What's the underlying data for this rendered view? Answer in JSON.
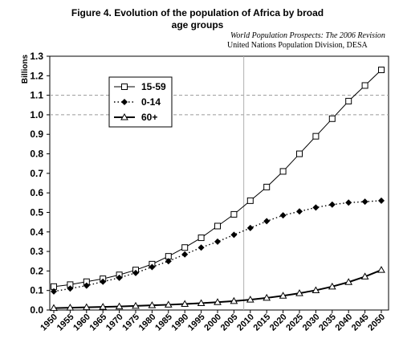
{
  "figure": {
    "title_line1": "Figure 4.  Evolution of the population of Africa by broad",
    "title_line2": "age groups",
    "source_line1": "World Population Prospects: The 2006 Revision",
    "source_line2": "United Nations Population Division, DESA"
  },
  "chart_data": {
    "type": "line",
    "ylabel": "Billions",
    "xlabel": "",
    "ylim": [
      0,
      1.3
    ],
    "yticks": [
      "0.0",
      "0.1",
      "0.2",
      "0.3",
      "0.4",
      "0.5",
      "0.6",
      "0.7",
      "0.8",
      "0.9",
      "1.0",
      "1.1",
      "1.2",
      "1.3"
    ],
    "x": [
      1950,
      1955,
      1960,
      1965,
      1970,
      1975,
      1980,
      1985,
      1990,
      1995,
      2000,
      2005,
      2010,
      2015,
      2020,
      2025,
      2030,
      2035,
      2040,
      2045,
      2050
    ],
    "reference_lines": {
      "horizontal_dashed": [
        1.0,
        1.1
      ],
      "vertical_at": 2008
    },
    "legend_position": "upper-left",
    "series": [
      {
        "name": "15-59",
        "marker": "open-square",
        "line": "solid",
        "values": [
          0.12,
          0.13,
          0.145,
          0.16,
          0.18,
          0.205,
          0.235,
          0.275,
          0.32,
          0.37,
          0.43,
          0.49,
          0.56,
          0.63,
          0.71,
          0.8,
          0.89,
          0.98,
          1.07,
          1.15,
          1.23
        ]
      },
      {
        "name": "0-14",
        "marker": "filled-diamond",
        "line": "dotted",
        "values": [
          0.095,
          0.11,
          0.125,
          0.145,
          0.165,
          0.19,
          0.22,
          0.25,
          0.285,
          0.32,
          0.35,
          0.385,
          0.42,
          0.455,
          0.485,
          0.505,
          0.525,
          0.54,
          0.55,
          0.555,
          0.56
        ]
      },
      {
        "name": "60+",
        "marker": "open-triangle",
        "line": "solid",
        "values": [
          0.01,
          0.012,
          0.014,
          0.016,
          0.018,
          0.021,
          0.024,
          0.027,
          0.031,
          0.035,
          0.04,
          0.046,
          0.053,
          0.062,
          0.073,
          0.086,
          0.101,
          0.12,
          0.143,
          0.171,
          0.205
        ]
      }
    ]
  }
}
